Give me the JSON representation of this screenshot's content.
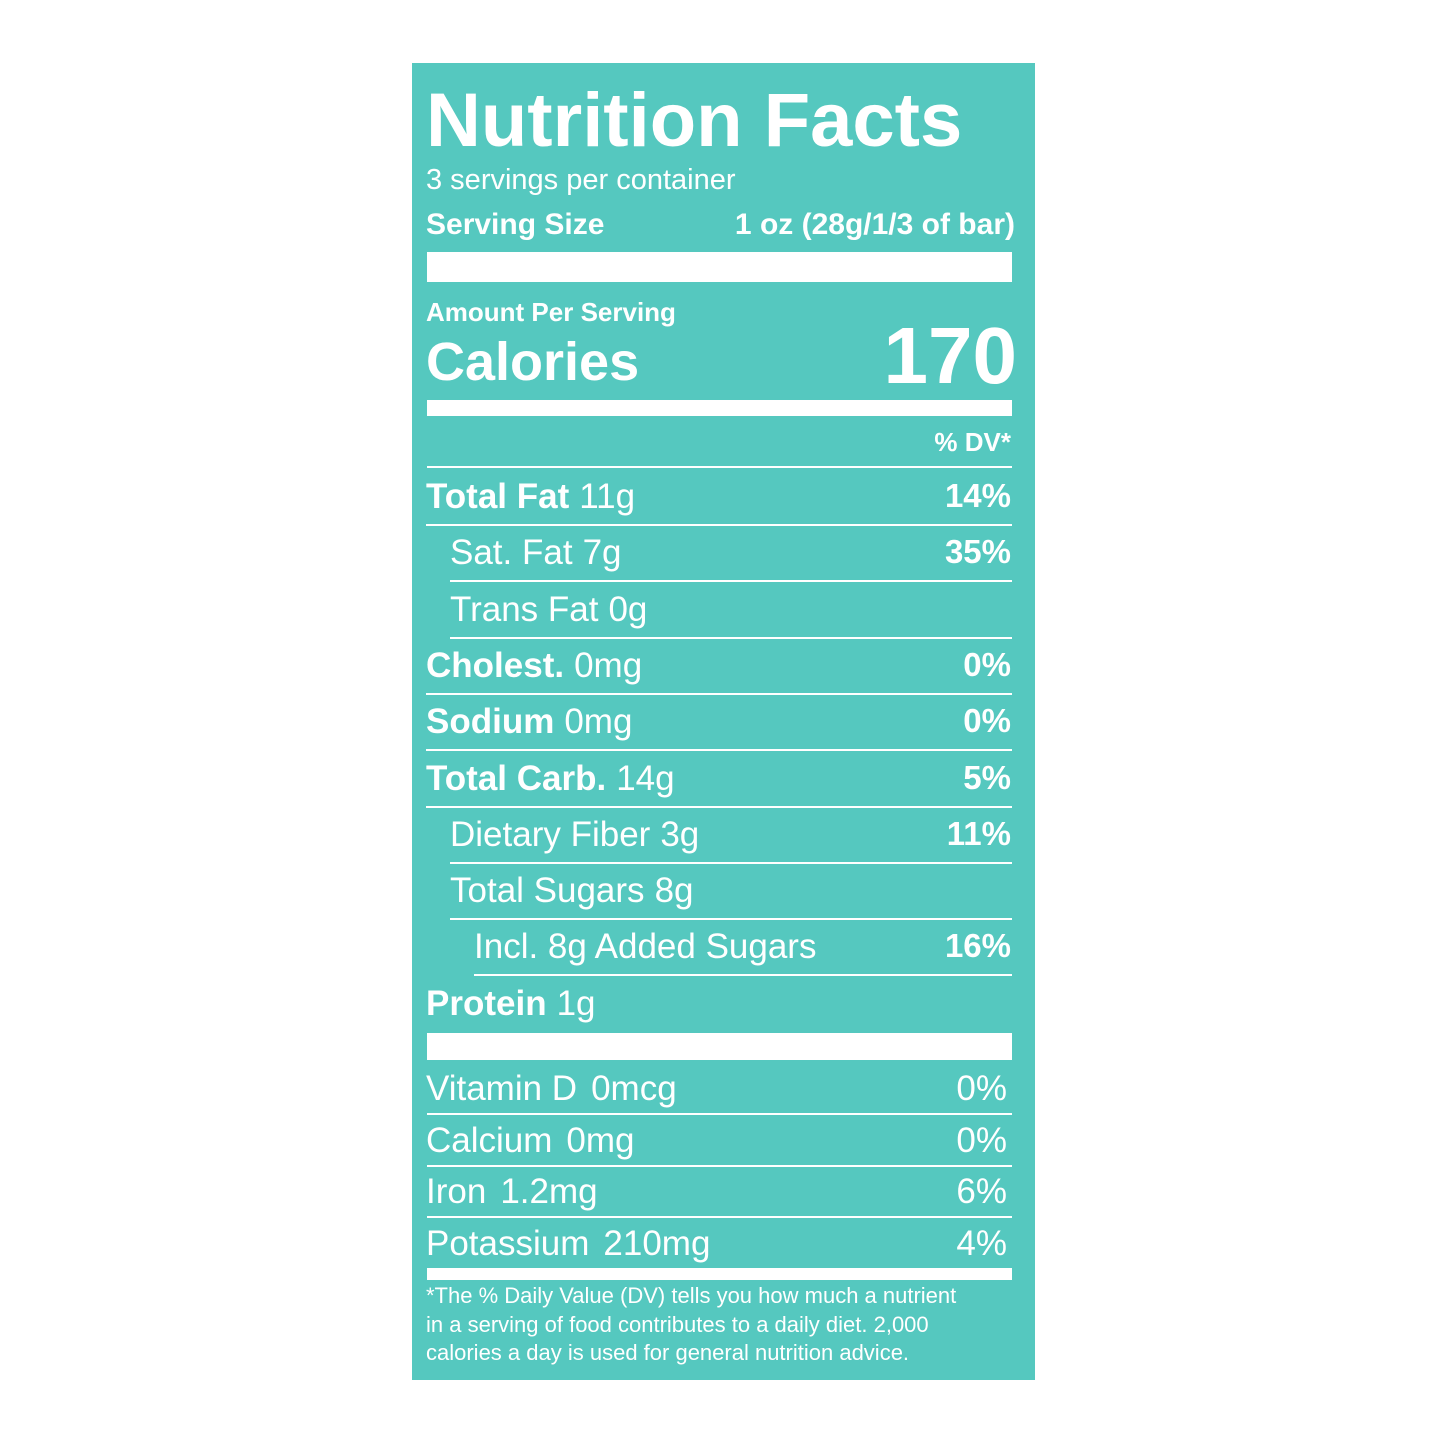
{
  "header": {
    "title": "Nutrition Facts",
    "servings": "3 servings per container",
    "serving_size_label": "Serving Size",
    "serving_size_value": "1 oz (28g/1/3 of bar)"
  },
  "calories": {
    "amount_label": "Amount Per Serving",
    "label": "Calories",
    "value": "170"
  },
  "dv_header": "% DV*",
  "nutrients": [
    {
      "name": "Total Fat",
      "amount": "11g",
      "dv": "14%"
    },
    {
      "name": "Sat. Fat",
      "amount": "7g",
      "dv": "35%"
    },
    {
      "name": "Trans Fat",
      "amount": "0g"
    },
    {
      "name": "Cholest.",
      "amount": "0mg",
      "dv": "0%"
    },
    {
      "name": "Sodium",
      "amount": "0mg",
      "dv": "0%"
    },
    {
      "name": "Total Carb.",
      "amount": "14g",
      "dv": "5%"
    },
    {
      "name": "Dietary Fiber",
      "amount": "3g",
      "dv": "11%"
    },
    {
      "name": "Total Sugars",
      "amount": "8g"
    },
    {
      "name": "Incl. 8g Added Sugars",
      "dv": "16%"
    },
    {
      "name": "Protein",
      "amount": "1g"
    }
  ],
  "vitamins": [
    {
      "name": "Vitamin D",
      "amount": "0mcg",
      "dv": "0%"
    },
    {
      "name": "Calcium",
      "amount": "0mg",
      "dv": "0%"
    },
    {
      "name": "Iron",
      "amount": "1.2mg",
      "dv": "6%"
    },
    {
      "name": "Potassium",
      "amount": "210mg",
      "dv": "4%"
    }
  ],
  "footnote": [
    "*The % Daily Value (DV) tells you how much a nutrient",
    "in a serving of food contributes to a daily diet. 2,000",
    "calories a day is used for general nutrition advice."
  ]
}
